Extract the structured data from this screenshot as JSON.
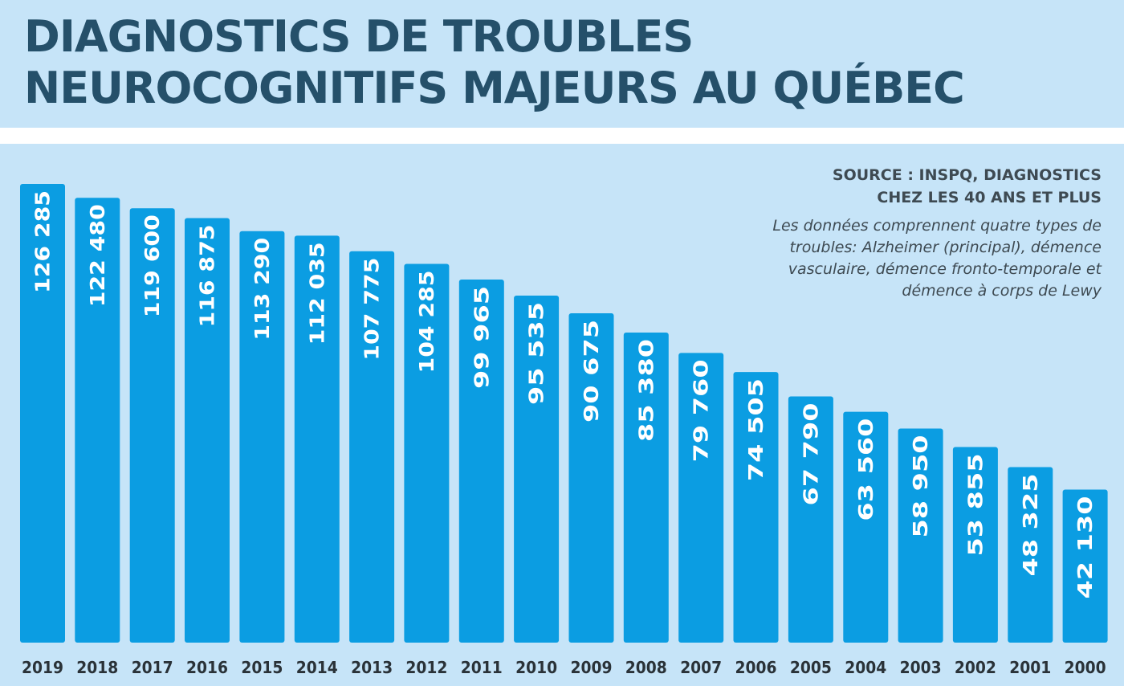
{
  "header": {
    "title_line1": "DIAGNOSTICS DE TROUBLES",
    "title_line2": "NEUROCOGNITIFS MAJEURS AU QUÉBEC"
  },
  "source": {
    "line1": "SOURCE : INSPQ, DIAGNOSTICS",
    "line2": "CHEZ LES 40 ANS ET PLUS"
  },
  "note": "Les données comprennent quatre types de troubles: Alzheimer (principal), démence vasculaire, démence fronto-temporale et démence à corps de Lewy",
  "colors": {
    "bar": "#0b9de2",
    "background": "#c6e4f8",
    "title": "#25506a"
  },
  "chart_data": {
    "type": "bar",
    "title": "DIAGNOSTICS DE TROUBLES NEUROCOGNITIFS MAJEURS AU QUÉBEC",
    "categories": [
      "2019",
      "2018",
      "2017",
      "2016",
      "2015",
      "2014",
      "2013",
      "2012",
      "2011",
      "2010",
      "2009",
      "2008",
      "2007",
      "2006",
      "2005",
      "2004",
      "2003",
      "2002",
      "2001",
      "2000"
    ],
    "values": [
      126285,
      122480,
      119600,
      116875,
      113290,
      112035,
      107775,
      104285,
      99965,
      95535,
      90675,
      85380,
      79760,
      74505,
      67790,
      63560,
      58950,
      53855,
      48325,
      42130
    ],
    "value_labels": [
      "126 285",
      "122 480",
      "119 600",
      "116 875",
      "113 290",
      "112 035",
      "107 775",
      "104 285",
      "99 965",
      "95 535",
      "90 675",
      "85 380",
      "79 760",
      "74 505",
      "67 790",
      "63 560",
      "58 950",
      "53 855",
      "48 325",
      "42 130"
    ],
    "xlabel": "",
    "ylabel": "",
    "grid": false,
    "legend": "none"
  }
}
